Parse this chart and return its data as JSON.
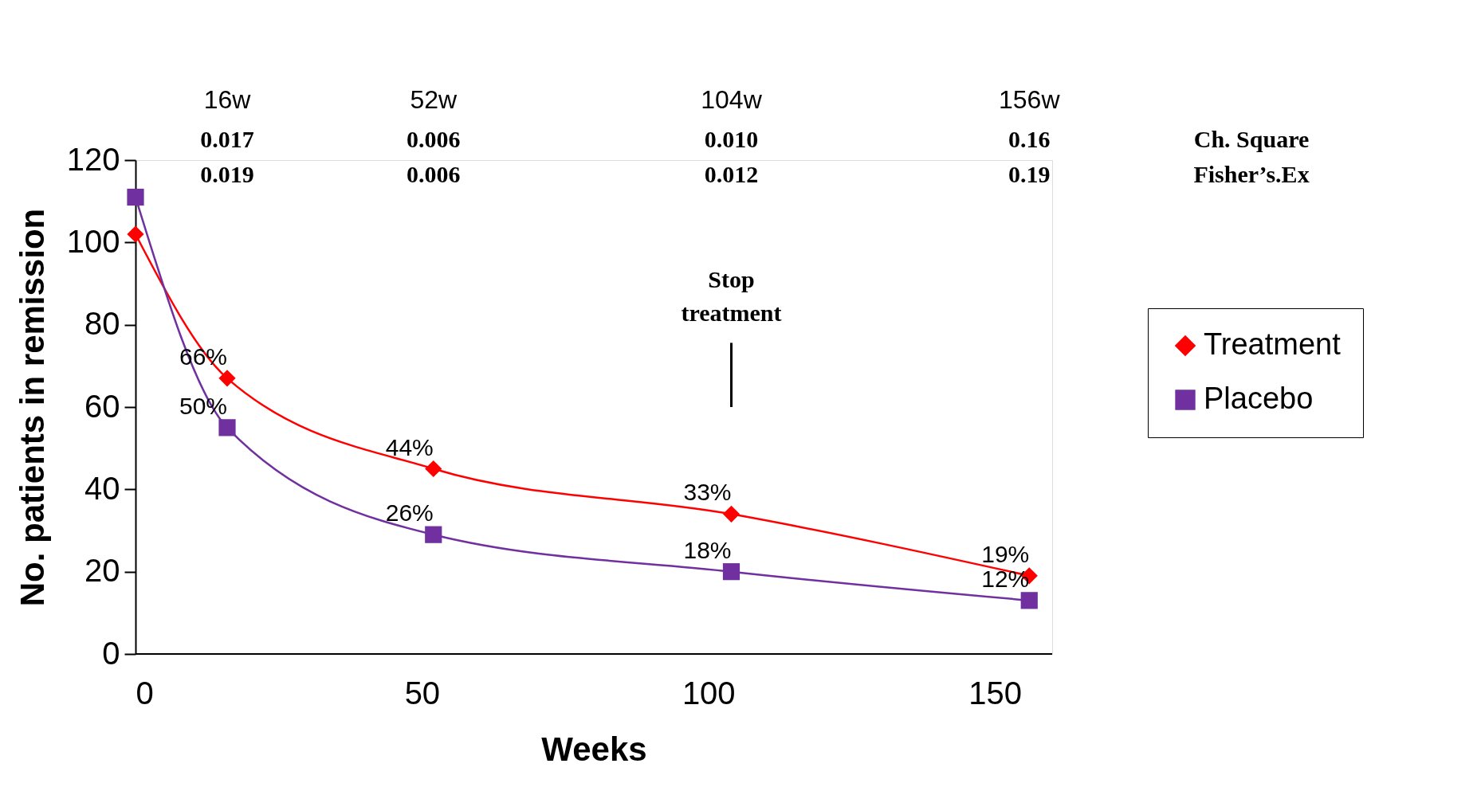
{
  "chart_data": {
    "type": "line",
    "xlabel": "Weeks",
    "ylabel": "No. patients in remission",
    "xlim": [
      0,
      160
    ],
    "xticks": [
      0,
      50,
      100,
      150
    ],
    "ylim": [
      0,
      120
    ],
    "yticks": [
      0,
      20,
      40,
      60,
      80,
      100,
      120
    ],
    "grid": false,
    "legend": "right",
    "line_style": "solid",
    "x": [
      0,
      16,
      52,
      104,
      156
    ],
    "series": [
      {
        "name": "Treatment",
        "color": "#ff0000",
        "marker": "diamond",
        "values": [
          102,
          67,
          45,
          34,
          19
        ]
      },
      {
        "name": "Placebo",
        "color": "#7030a0",
        "marker": "square",
        "values": [
          111,
          55,
          29,
          20,
          13
        ]
      }
    ],
    "annotations": [
      "16w",
      "52w",
      "104w",
      "156w",
      "0.017",
      "0.006",
      "0.010",
      "0.16",
      "Ch. Square",
      "0.019",
      "0.006",
      "0.012",
      "0.19",
      "Fisher’s.Ex",
      "Stop treatment",
      {
        "text": "66%",
        "x": 16,
        "y": 67
      },
      {
        "text": "44%",
        "x": 52,
        "y": 45
      },
      {
        "text": "33%",
        "x": 104,
        "y": 34
      },
      {
        "text": "19%",
        "x": 156,
        "y": 19
      },
      {
        "text": "50%",
        "x": 16,
        "y": 55
      },
      {
        "text": "26%",
        "x": 52,
        "y": 29
      },
      {
        "text": "18%",
        "x": 104,
        "y": 20
      },
      {
        "text": "12%",
        "x": 156,
        "y": 13
      }
    ]
  }
}
